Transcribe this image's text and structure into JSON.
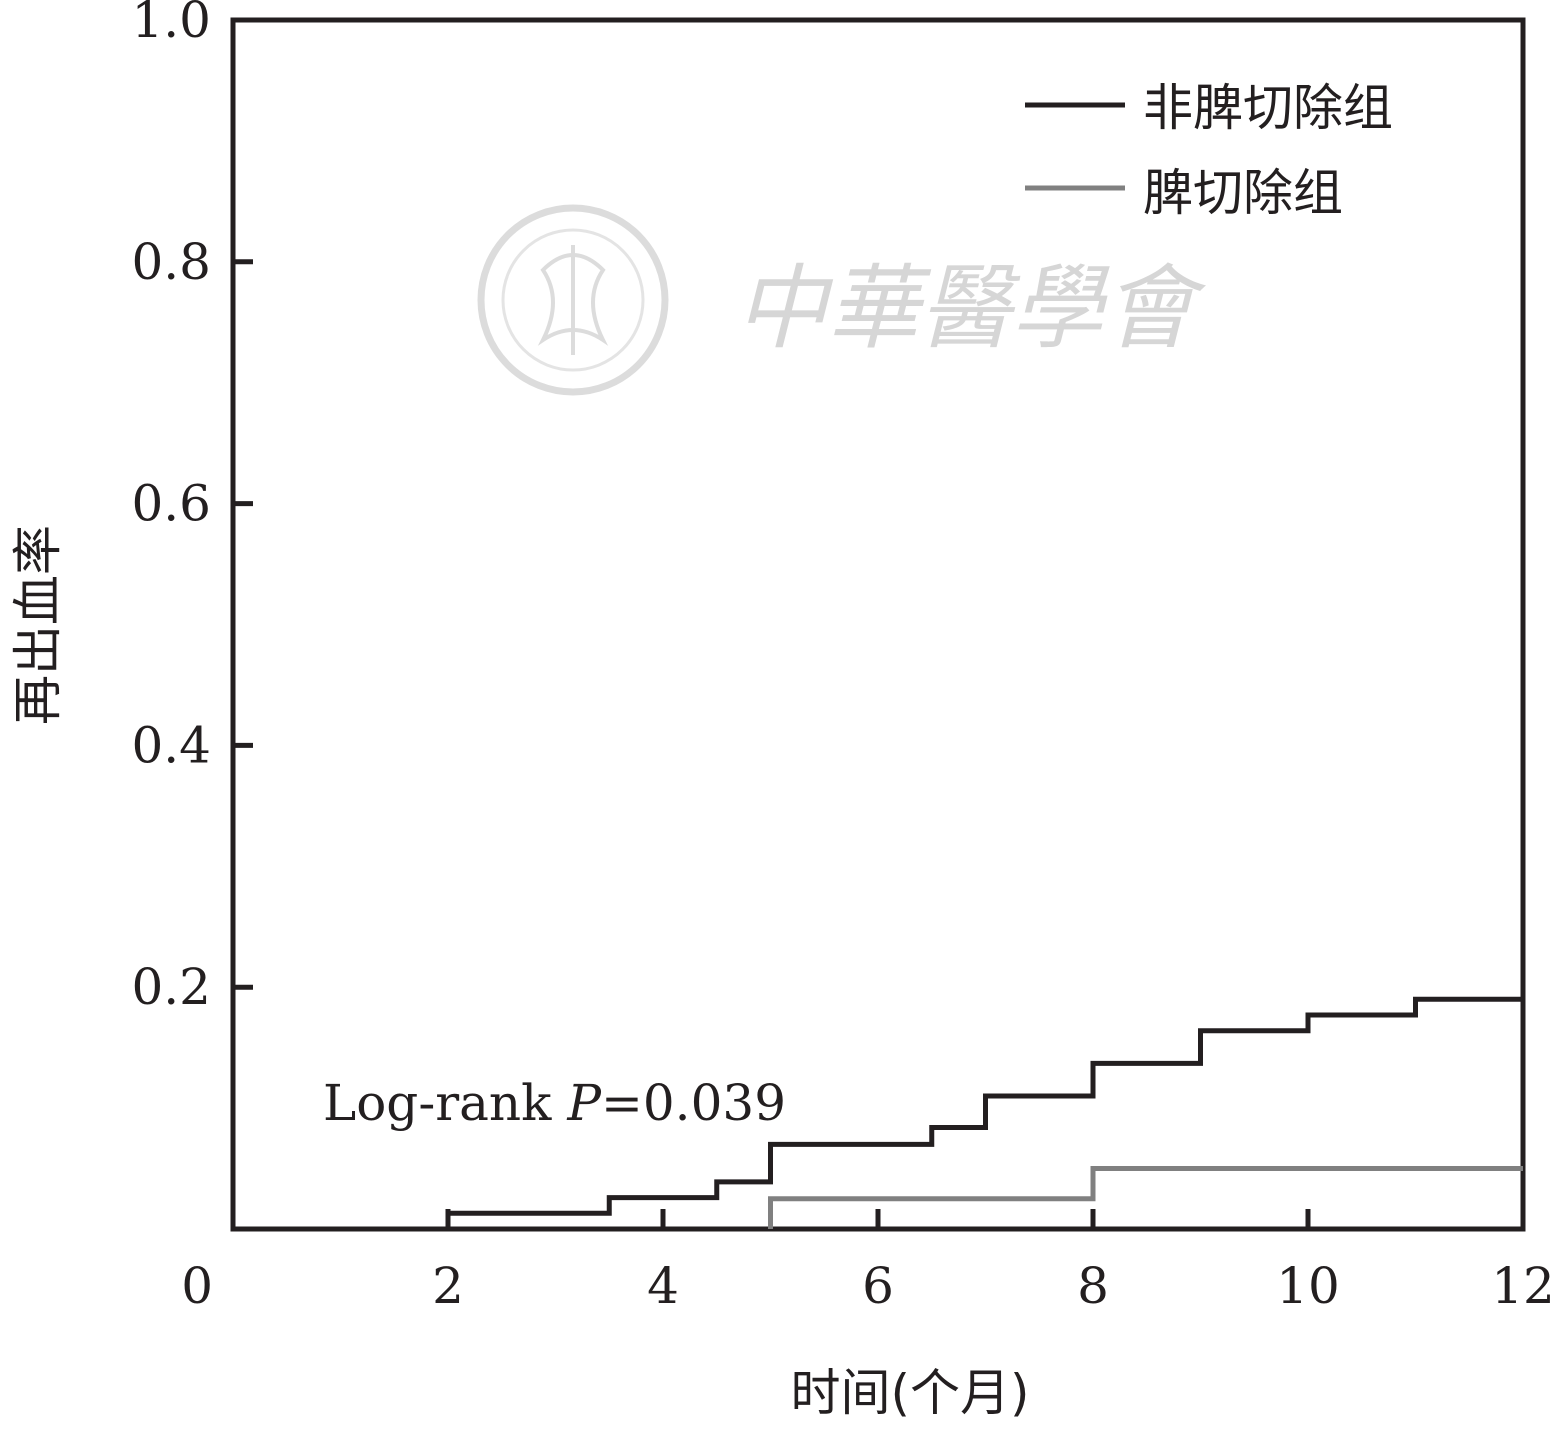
{
  "chart_data": {
    "type": "line",
    "step": true,
    "xlabel": "时间(个月)",
    "ylabel": "再出血率",
    "xlim": [
      0,
      12
    ],
    "ylim": [
      0,
      1.0
    ],
    "x_ticks": [
      "0",
      "2",
      "4",
      "6",
      "8",
      "10",
      "12"
    ],
    "y_ticks": [
      "0.2",
      "0.4",
      "0.6",
      "0.8",
      "1.0"
    ],
    "legend_position": "top-right",
    "grid": false,
    "series": [
      {
        "name": "非脾切除组",
        "color": "#231f20",
        "x": [
          2,
          3.5,
          4.5,
          5,
          6.5,
          7,
          8,
          9,
          10,
          11,
          12
        ],
        "y": [
          0.013,
          0.026,
          0.039,
          0.07,
          0.084,
          0.11,
          0.137,
          0.164,
          0.177,
          0.19,
          0.19
        ]
      },
      {
        "name": "脾切除组",
        "color": "#808080",
        "x": [
          5,
          8,
          12
        ],
        "y": [
          0.025,
          0.05,
          0.05
        ]
      }
    ],
    "annotation": {
      "prefix": "Log-rank ",
      "p_symbol": "P",
      "suffix": "=0.039"
    }
  },
  "watermark": {
    "text": "中華醫學會",
    "seal": "中华医学会 seal",
    "color": "#d6d6d6"
  }
}
